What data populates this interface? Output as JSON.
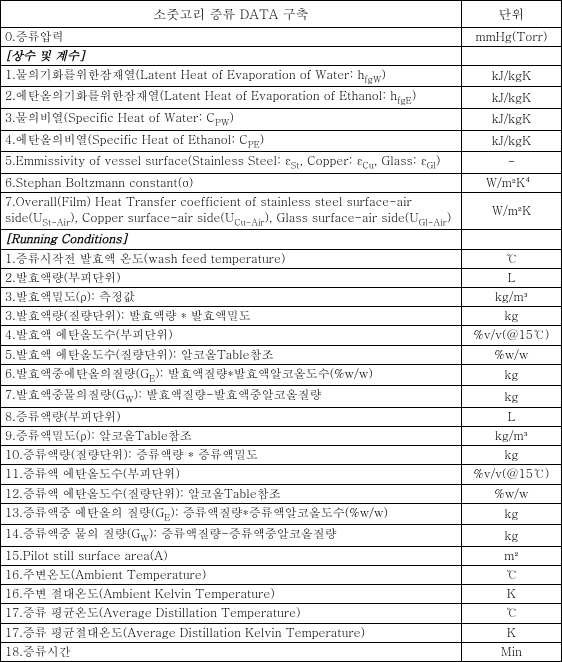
{
  "header": {
    "col1": "소줏고리 증류 DATA 구축",
    "col2": "단위"
  },
  "rows": [
    {
      "desc": "0.증류압력",
      "unit": "mmHg(Torr)",
      "cls": ""
    },
    {
      "desc": "[상수 및 계수]",
      "unit": "",
      "cls": "section-header"
    },
    {
      "desc": "1.물의기화를위한잠재열(Latent Heat of Evaporation of Water: h_fgW)",
      "unit": "kJ/kgK",
      "cls": ""
    },
    {
      "desc": "2.에탄올의기화를위한잠재열(Latent Heat of Evaporation of Ethanol: h_fgE)",
      "unit": "kJ/kgK",
      "cls": ""
    },
    {
      "desc": "3.물의비열(Specific Heat of Water: C_PW)",
      "unit": "kJ/kgK",
      "cls": ""
    },
    {
      "desc": "4.에탄올의비열(Specific Heat of Ethanol: C_PE)",
      "unit": "kJ/kgK",
      "cls": ""
    },
    {
      "desc": "5.Emmissivity of vessel surface(Stainless Steel: ε_St, Copper: ε_Cu, Glass: ε_Gl)",
      "unit": "-",
      "cls": ""
    },
    {
      "desc": "6.Stephan Boltzmann constant(σ)",
      "unit": "W/m²K⁴",
      "cls": ""
    },
    {
      "desc": "7.Overall(Film) Heat Transfer coefficient of stainless steel surface-air side(U_St-Air), Copper surface-air side(U_Cu-Air), Glass surface-air side(U_Gl-Air)",
      "unit": "W/m²K",
      "cls": "dashed"
    },
    {
      "desc": "[Running Conditions]",
      "unit": "",
      "cls": "section-header"
    },
    {
      "desc": "1.증류시작전 발효액 온도(wash feed temperature)",
      "unit": "℃",
      "cls": ""
    },
    {
      "desc": "2.발효액량(부피단위)",
      "unit": "L",
      "cls": ""
    },
    {
      "desc": "3.발효액밀도(ρ): 측정값",
      "unit": "kg/m³",
      "cls": ""
    },
    {
      "desc": "3.발효액량(질량단위): 발효액량 * 발효액밀도",
      "unit": "kg",
      "cls": ""
    },
    {
      "desc": "4.발효액 에탄올도수(부피단위)",
      "unit": "%v/v(@15℃)",
      "cls": ""
    },
    {
      "desc": "5.발효액 에탄올도수(질량단위): 알코올Table참조",
      "unit": "%w/w",
      "cls": ""
    },
    {
      "desc": "6.발효액중에탄올의질량(G_E): 발효액질량*발효액알코올도수(%w/w)",
      "unit": "kg",
      "cls": ""
    },
    {
      "desc": "7.발효액중물의질량(G_W): 발효액질량-발효액중알코올질량",
      "unit": "kg",
      "cls": ""
    },
    {
      "desc": "8.증류액량(부피단위)",
      "unit": "L",
      "cls": ""
    },
    {
      "desc": "9.증류액밀도(ρ): 알코올Table참조",
      "unit": "kg/m³",
      "cls": ""
    },
    {
      "desc": "10.증류액량(질량단위): 증류액량 * 증류액밀도",
      "unit": "kg",
      "cls": ""
    },
    {
      "desc": "11.증류액 에탄올도수(부피단위)",
      "unit": "%v/v(@15℃)",
      "cls": ""
    },
    {
      "desc": "12.증류액 에탄올도수(질량단위): 알코올Table참조",
      "unit": "%w/w",
      "cls": ""
    },
    {
      "desc": "13.증류액중 에탄올의 질량(G_E): 증류액질량*증류액알코올도수(%w/w)",
      "unit": "kg",
      "cls": ""
    },
    {
      "desc": "14.증류액중 물의 질량(G_W): 증류액질량-증류액중알코올질량",
      "unit": "kg",
      "cls": ""
    },
    {
      "desc": "15.Pilot still surface area(A)",
      "unit": "m²",
      "cls": ""
    },
    {
      "desc": "16.주변온도(Ambient Temperature)",
      "unit": "℃",
      "cls": ""
    },
    {
      "desc": "16.주변 절대온도(Ambient Kelvin Temperature)",
      "unit": "K",
      "cls": ""
    },
    {
      "desc": "17.증류 평균온도(Average Distillation Temperature)",
      "unit": "℃",
      "cls": ""
    },
    {
      "desc": "17.증류 평균절대온도(Average Distillation Kelvin Temperature)",
      "unit": "K",
      "cls": ""
    },
    {
      "desc": "18.증류시간",
      "unit": "Min",
      "cls": ""
    }
  ]
}
